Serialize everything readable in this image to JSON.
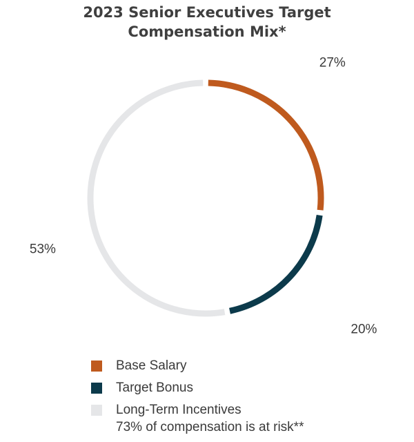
{
  "chart_data": {
    "type": "pie",
    "style": "donut-ring",
    "title": [
      "2023 Senior Executives Target",
      "Compensation Mix*"
    ],
    "categories": [
      "Base Salary",
      "Target Bonus",
      "Long-Term Incentives"
    ],
    "values": [
      27,
      20,
      53
    ],
    "value_labels": [
      "27%",
      "20%",
      "53%"
    ],
    "colors": [
      "#bf5a1e",
      "#0c3a4b",
      "#e5e6e8"
    ],
    "legend_position": "bottom",
    "note": "73% of compensation is at risk**"
  }
}
